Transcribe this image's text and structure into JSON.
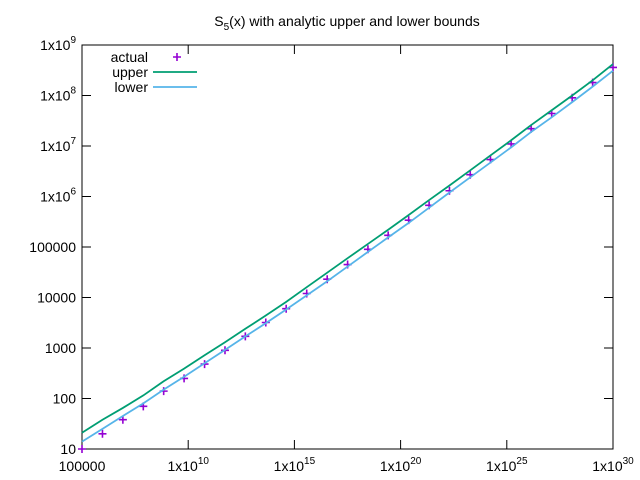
{
  "chart_data": {
    "type": "line",
    "title": {
      "text": "S",
      "sub": "5",
      "rest": "(x) with analytic upper and lower bounds"
    },
    "log_x": true,
    "log_y": true,
    "legend": "top left",
    "x": [
      100000.0,
      920000.0,
      8400000.0,
      77000000.0,
      700000000.0,
      6400000000.0,
      59000000000.0,
      540000000000.0,
      4900000000000.0,
      45000000000000.0,
      410000000000000.0,
      3800000000000000.0,
      3.5e+16,
      3.2e+17,
      2.9e+18,
      2.6e+19,
      2.4e+20,
      2.2e+21,
      2e+22,
      1.9e+23,
      1.7e+24,
      1.6e+25,
      1.4e+26,
      1.3e+27,
      1.2e+28,
      1.1e+29,
      1e+30
    ],
    "series": [
      {
        "name": "actual",
        "style": "points",
        "color": "#9400d3",
        "values": [
          10,
          20,
          38,
          70,
          140,
          250,
          480,
          900,
          1700,
          3200,
          6000,
          12000,
          23000,
          45000,
          90000,
          170000,
          340000,
          670000,
          1300000,
          2700000,
          5400000,
          11000000,
          22000000,
          44000000,
          90000000,
          180000000,
          360000000
        ]
      },
      {
        "name": "upper",
        "style": "line",
        "color": "#009e73",
        "values": [
          21,
          38,
          65,
          115,
          220,
          390,
          720,
          1300,
          2400,
          4400,
          8200,
          16000,
          31000,
          60000,
          115000,
          220000,
          430000,
          850000,
          1650000,
          3300000,
          6500000,
          13000000,
          26000000,
          51000000,
          100000000,
          200000000,
          420000000
        ]
      },
      {
        "name": "lower",
        "style": "line",
        "color": "#56b4e9",
        "values": [
          14,
          25,
          45,
          80,
          150,
          270,
          500,
          920,
          1700,
          3100,
          5800,
          11000,
          21000,
          41000,
          80000,
          155000,
          300000,
          600000,
          1200000,
          2400000,
          4700000,
          9400000,
          19000000,
          37000000,
          74000000,
          150000000,
          310000000
        ]
      }
    ],
    "xlim": [
      100000.0,
      1e+30
    ],
    "xticks": [
      100000,
      {
        "value": 10000000000.0,
        "label": "1x10",
        "sup": "10"
      },
      {
        "value": 1000000000000000.0,
        "label": "1x10",
        "sup": "15"
      },
      {
        "value": 1e+20,
        "label": "1x10",
        "sup": "20"
      },
      {
        "value": 1e+25,
        "label": "1x10",
        "sup": "25"
      },
      {
        "value": 1e+30,
        "label": "1x10",
        "sup": "30"
      }
    ],
    "ylim": [
      10,
      1000000000.0
    ],
    "yticks": [
      10,
      100,
      1000,
      10000,
      100000,
      {
        "value": 1000000.0,
        "label": "1x10",
        "sup": "6"
      },
      {
        "value": 10000000.0,
        "label": "1x10",
        "sup": "7"
      },
      {
        "value": 100000000.0,
        "label": "1x10",
        "sup": "8"
      },
      {
        "value": 1000000000.0,
        "label": "1x10",
        "sup": "9"
      }
    ]
  }
}
